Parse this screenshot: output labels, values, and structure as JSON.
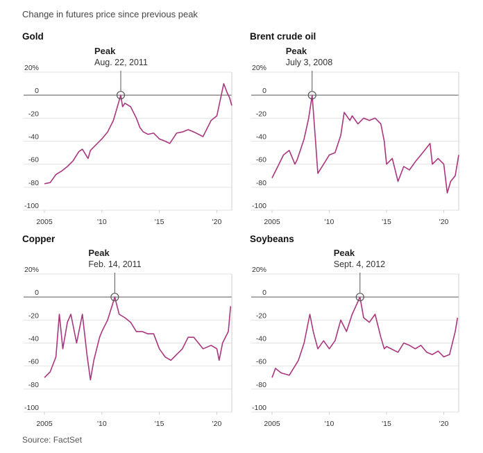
{
  "subtitle": "Change in futures price since previous peak",
  "source": "Source: FactSet",
  "colors": {
    "series": "#a8357e",
    "grid": "#e2e2e2",
    "zero": "#555555"
  },
  "chart_data": [
    {
      "type": "line",
      "title": "Gold",
      "peak_label": "Peak",
      "peak_date": "Aug. 22, 2011",
      "peak_x": 2011.64,
      "ylim": [
        -100,
        20
      ],
      "yticks": [
        "20%",
        "0",
        "-20",
        "-40",
        "-60",
        "-80",
        "-100"
      ],
      "xlim": [
        2005,
        2021.3
      ],
      "xticks": [
        "2005",
        "'10",
        "'15",
        "'20"
      ],
      "x": [
        2005,
        2005.5,
        2006,
        2006.5,
        2007,
        2007.5,
        2008,
        2008.3,
        2008.8,
        2009,
        2009.5,
        2010,
        2010.5,
        2011,
        2011.64,
        2011.8,
        2012,
        2012.5,
        2013,
        2013.3,
        2013.6,
        2014,
        2014.5,
        2015,
        2015.5,
        2015.9,
        2016.5,
        2017,
        2017.5,
        2018,
        2018.8,
        2019,
        2019.5,
        2020,
        2020.6,
        2020.9,
        2021.1,
        2021.3
      ],
      "y": [
        -77,
        -76,
        -69,
        -66,
        -62,
        -57,
        -49,
        -47,
        -55,
        -48,
        -43,
        -38,
        -32,
        -22,
        0,
        -10,
        -7,
        -10,
        -20,
        -28,
        -32,
        -34,
        -33,
        -38,
        -40,
        -42,
        -33,
        -32,
        -30,
        -32,
        -36,
        -32,
        -22,
        -18,
        10,
        2,
        -2,
        -9
      ]
    },
    {
      "type": "line",
      "title": "Brent crude oil",
      "peak_label": "Peak",
      "peak_date": "July 3, 2008",
      "peak_x": 2008.5,
      "ylim": [
        -100,
        20
      ],
      "yticks": [
        "20%",
        "0",
        "-20",
        "-40",
        "-60",
        "-80",
        "-100"
      ],
      "xlim": [
        2005,
        2021.3
      ],
      "xticks": [
        "2005",
        "'10",
        "'15",
        "'20"
      ],
      "x": [
        2005,
        2005.5,
        2006,
        2006.5,
        2007,
        2007.2,
        2007.8,
        2008.2,
        2008.5,
        2008.8,
        2009,
        2009.5,
        2010,
        2010.5,
        2011,
        2011.3,
        2011.8,
        2012,
        2012.5,
        2013,
        2013.5,
        2014,
        2014.5,
        2014.8,
        2015,
        2015.5,
        2016,
        2016.5,
        2017,
        2017.5,
        2018,
        2018.8,
        2019,
        2019.5,
        2020,
        2020.3,
        2020.6,
        2021,
        2021.3
      ],
      "y": [
        -72,
        -62,
        -52,
        -48,
        -60,
        -56,
        -38,
        -20,
        0,
        -40,
        -68,
        -60,
        -52,
        -50,
        -35,
        -15,
        -22,
        -18,
        -25,
        -20,
        -22,
        -20,
        -25,
        -40,
        -60,
        -55,
        -75,
        -62,
        -65,
        -58,
        -52,
        -42,
        -60,
        -55,
        -60,
        -85,
        -75,
        -70,
        -52
      ]
    },
    {
      "type": "line",
      "title": "Copper",
      "peak_label": "Peak",
      "peak_date": "Feb. 14, 2011",
      "peak_x": 2011.12,
      "ylim": [
        -100,
        20
      ],
      "yticks": [
        "20%",
        "0",
        "-20",
        "-40",
        "-60",
        "-80",
        "-100"
      ],
      "xlim": [
        2005,
        2021.3
      ],
      "xticks": [
        "2005",
        "'10",
        "'15",
        "'20"
      ],
      "x": [
        2005,
        2005.5,
        2006,
        2006.3,
        2006.6,
        2007,
        2007.3,
        2007.8,
        2008.3,
        2008.7,
        2009,
        2009.3,
        2009.8,
        2010,
        2010.5,
        2011.12,
        2011.5,
        2012,
        2012.5,
        2013,
        2013.5,
        2014,
        2014.5,
        2015,
        2015.5,
        2016,
        2016.5,
        2017,
        2017.5,
        2018,
        2018.8,
        2019.5,
        2020,
        2020.2,
        2020.5,
        2021,
        2021.2
      ],
      "y": [
        -70,
        -65,
        -52,
        -15,
        -45,
        -22,
        -15,
        -40,
        -15,
        -50,
        -72,
        -55,
        -35,
        -30,
        -20,
        0,
        -15,
        -18,
        -22,
        -30,
        -30,
        -32,
        -32,
        -45,
        -52,
        -55,
        -50,
        -45,
        -35,
        -35,
        -45,
        -42,
        -45,
        -55,
        -40,
        -30,
        -8
      ]
    },
    {
      "type": "line",
      "title": "Soybeans",
      "peak_label": "Peak",
      "peak_date": "Sept. 4, 2012",
      "peak_x": 2012.68,
      "ylim": [
        -100,
        20
      ],
      "yticks": [
        "20%",
        "0",
        "-20",
        "-40",
        "-60",
        "-80",
        "-100"
      ],
      "xlim": [
        2005,
        2021.3
      ],
      "xticks": [
        "2005",
        "'10",
        "'15",
        "'20"
      ],
      "x": [
        2005,
        2005.3,
        2005.8,
        2006.5,
        2007,
        2007.3,
        2007.8,
        2008.3,
        2008.6,
        2009,
        2009.5,
        2010,
        2010.5,
        2011,
        2011.5,
        2012,
        2012.68,
        2013,
        2013.5,
        2014,
        2014.5,
        2014.8,
        2015,
        2016,
        2016.5,
        2017,
        2017.5,
        2018,
        2018.5,
        2019,
        2019.5,
        2020,
        2020.5,
        2021,
        2021.2
      ],
      "y": [
        -70,
        -62,
        -66,
        -68,
        -60,
        -55,
        -40,
        -15,
        -30,
        -45,
        -38,
        -45,
        -38,
        -20,
        -30,
        -15,
        0,
        -18,
        -22,
        -15,
        -35,
        -45,
        -43,
        -48,
        -40,
        -42,
        -45,
        -42,
        -48,
        -50,
        -47,
        -52,
        -50,
        -30,
        -18
      ]
    }
  ]
}
